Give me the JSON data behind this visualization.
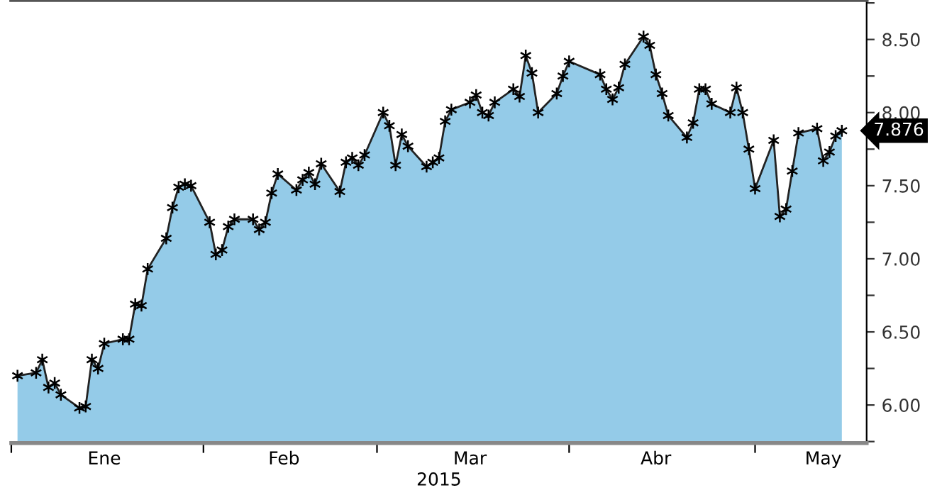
{
  "chart_data": {
    "type": "area",
    "xlabel": "2015",
    "series": [
      {
        "color": "#94cbe8",
        "marker": "cross",
        "line_style": "solid",
        "values": [
          6.2,
          6.22,
          6.31,
          6.12,
          6.15,
          6.07,
          5.98,
          5.99,
          6.31,
          6.25,
          6.42,
          6.45,
          6.45,
          6.69,
          6.68,
          6.93,
          7.14,
          7.35,
          7.49,
          7.51,
          7.5,
          7.25,
          7.03,
          7.06,
          7.22,
          7.27,
          7.27,
          7.2,
          7.25,
          7.45,
          7.58,
          7.47,
          7.54,
          7.59,
          7.51,
          7.65,
          7.46,
          7.66,
          7.69,
          7.64,
          7.71,
          8.0,
          7.91,
          7.64,
          7.85,
          7.77,
          7.63,
          7.66,
          7.69,
          7.94,
          8.02,
          8.07,
          8.12,
          8.0,
          7.98,
          8.07,
          8.16,
          8.11,
          8.39,
          8.27,
          8.0,
          8.13,
          8.25,
          8.35,
          8.26,
          8.16,
          8.09,
          8.17,
          8.33,
          8.52,
          8.46,
          8.26,
          8.13,
          7.98,
          7.83,
          7.93,
          8.16,
          8.16,
          8.06,
          8.0,
          8.17,
          8.0,
          7.75,
          7.48,
          7.81,
          7.29,
          7.34,
          7.6,
          7.86,
          7.89,
          7.67,
          7.73,
          7.84,
          7.876
        ]
      }
    ],
    "x": [
      "2015-01-02",
      "2015-01-05",
      "2015-01-06",
      "2015-01-07",
      "2015-01-08",
      "2015-01-09",
      "2015-01-12",
      "2015-01-13",
      "2015-01-14",
      "2015-01-15",
      "2015-01-16",
      "2015-01-19",
      "2015-01-20",
      "2015-01-21",
      "2015-01-22",
      "2015-01-23",
      "2015-01-26",
      "2015-01-27",
      "2015-01-28",
      "2015-01-29",
      "2015-01-30",
      "2015-02-02",
      "2015-02-03",
      "2015-02-04",
      "2015-02-05",
      "2015-02-06",
      "2015-02-09",
      "2015-02-10",
      "2015-02-11",
      "2015-02-12",
      "2015-02-13",
      "2015-02-16",
      "2015-02-17",
      "2015-02-18",
      "2015-02-19",
      "2015-02-20",
      "2015-02-23",
      "2015-02-24",
      "2015-02-25",
      "2015-02-26",
      "2015-02-27",
      "2015-03-02",
      "2015-03-03",
      "2015-03-04",
      "2015-03-05",
      "2015-03-06",
      "2015-03-09",
      "2015-03-10",
      "2015-03-11",
      "2015-03-12",
      "2015-03-13",
      "2015-03-16",
      "2015-03-17",
      "2015-03-18",
      "2015-03-19",
      "2015-03-20",
      "2015-03-23",
      "2015-03-24",
      "2015-03-25",
      "2015-03-26",
      "2015-03-27",
      "2015-03-30",
      "2015-03-31",
      "2015-04-01",
      "2015-04-06",
      "2015-04-07",
      "2015-04-08",
      "2015-04-09",
      "2015-04-10",
      "2015-04-13",
      "2015-04-14",
      "2015-04-15",
      "2015-04-16",
      "2015-04-17",
      "2015-04-20",
      "2015-04-21",
      "2015-04-22",
      "2015-04-23",
      "2015-04-24",
      "2015-04-27",
      "2015-04-28",
      "2015-04-29",
      "2015-04-30",
      "2015-05-01",
      "2015-05-04",
      "2015-05-05",
      "2015-05-06",
      "2015-05-07",
      "2015-05-08",
      "2015-05-11",
      "2015-05-12",
      "2015-05-13",
      "2015-05-14",
      "2015-05-15"
    ],
    "xlim": [
      "2015-01-01",
      "2015-05-19"
    ],
    "xticks": [
      {
        "value": "2015-01-01",
        "label": null
      },
      {
        "value": "2015-01-16",
        "label": "Ene"
      },
      {
        "value": "2015-02-01",
        "label": null
      },
      {
        "value": "2015-02-14",
        "label": "Feb"
      },
      {
        "value": "2015-03-01",
        "label": null
      },
      {
        "value": "2015-03-16",
        "label": "Mar"
      },
      {
        "value": "2015-04-01",
        "label": null
      },
      {
        "value": "2015-04-15",
        "label": "Abr"
      },
      {
        "value": "2015-05-01",
        "label": null
      },
      {
        "value": "2015-05-12",
        "label": "May"
      }
    ],
    "ylim": [
      5.74,
      8.77
    ],
    "yticks": [
      {
        "value": 5.75,
        "label": null
      },
      {
        "value": 6.0,
        "label": "6.00"
      },
      {
        "value": 6.25,
        "label": null
      },
      {
        "value": 6.5,
        "label": "6.50"
      },
      {
        "value": 6.75,
        "label": null
      },
      {
        "value": 7.0,
        "label": "7.00"
      },
      {
        "value": 7.25,
        "label": null
      },
      {
        "value": 7.5,
        "label": "7.50"
      },
      {
        "value": 7.75,
        "label": null
      },
      {
        "value": 8.0,
        "label": "8.00"
      },
      {
        "value": 8.25,
        "label": null
      },
      {
        "value": 8.5,
        "label": "8.50"
      },
      {
        "value": 8.75,
        "label": null
      }
    ],
    "annotations": [
      {
        "text": "7.876",
        "x": "2015-05-15",
        "y": 7.876
      }
    ],
    "grid": false,
    "legend": false
  }
}
